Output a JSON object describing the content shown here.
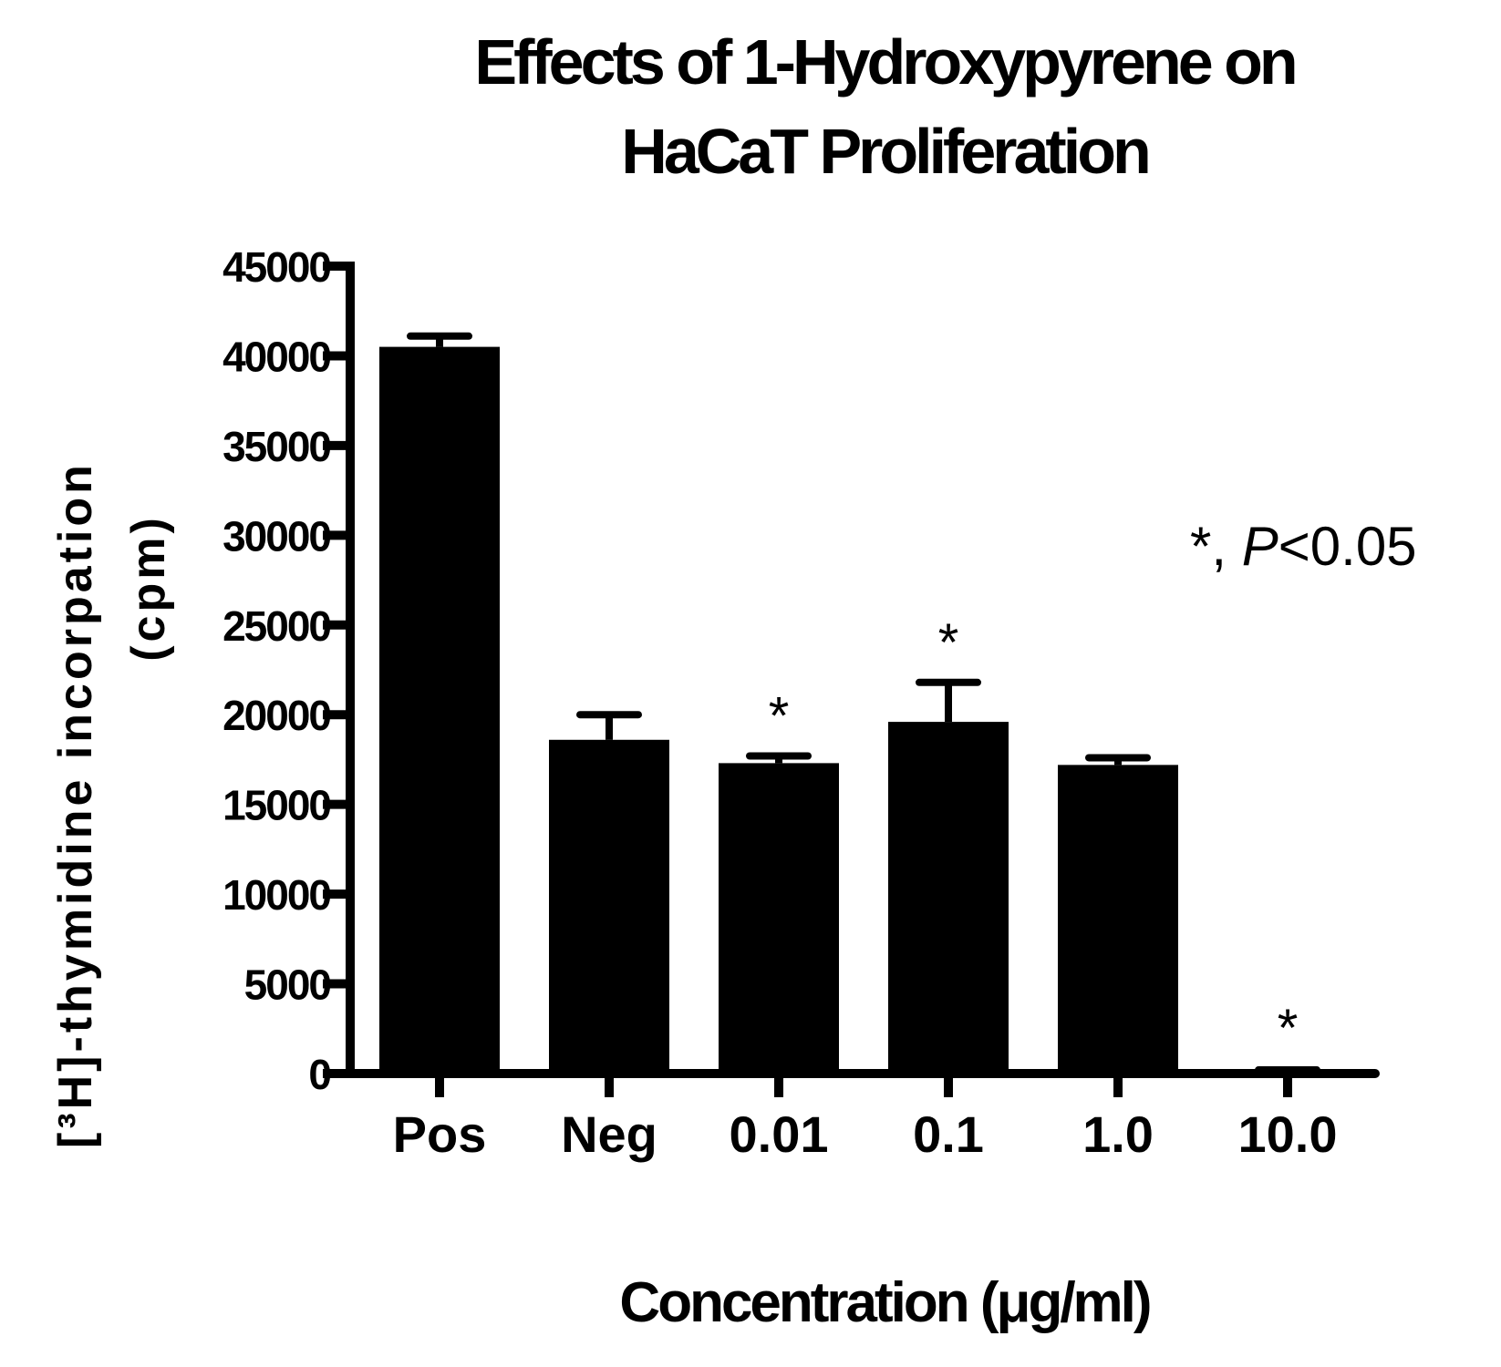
{
  "chart_data": {
    "type": "bar",
    "title_lines": [
      "Effects of 1-Hydroxypyrene on",
      "HaCaT Proliferation"
    ],
    "ylabel_lines": [
      "[³H]-thymidine incorpation",
      "(cpm)"
    ],
    "xlabel": "Concentration (μg/ml)",
    "categories": [
      "Pos",
      "Neg",
      "0.01",
      "0.1",
      "1.0",
      "10.0"
    ],
    "values": [
      40500,
      18600,
      17300,
      19600,
      17200,
      100
    ],
    "error": [
      600,
      1400,
      400,
      2200,
      400,
      100
    ],
    "significant": [
      false,
      false,
      true,
      true,
      false,
      true
    ],
    "significance_marker": "*",
    "annotation": {
      "star": "*",
      "text": ", ",
      "p": "P",
      "rest": "<0.05"
    },
    "yticks": [
      "0",
      "5000",
      "10000",
      "15000",
      "20000",
      "25000",
      "30000",
      "35000",
      "40000",
      "45000"
    ],
    "ylim": [
      0,
      45000
    ],
    "bar_color": "#000000"
  }
}
